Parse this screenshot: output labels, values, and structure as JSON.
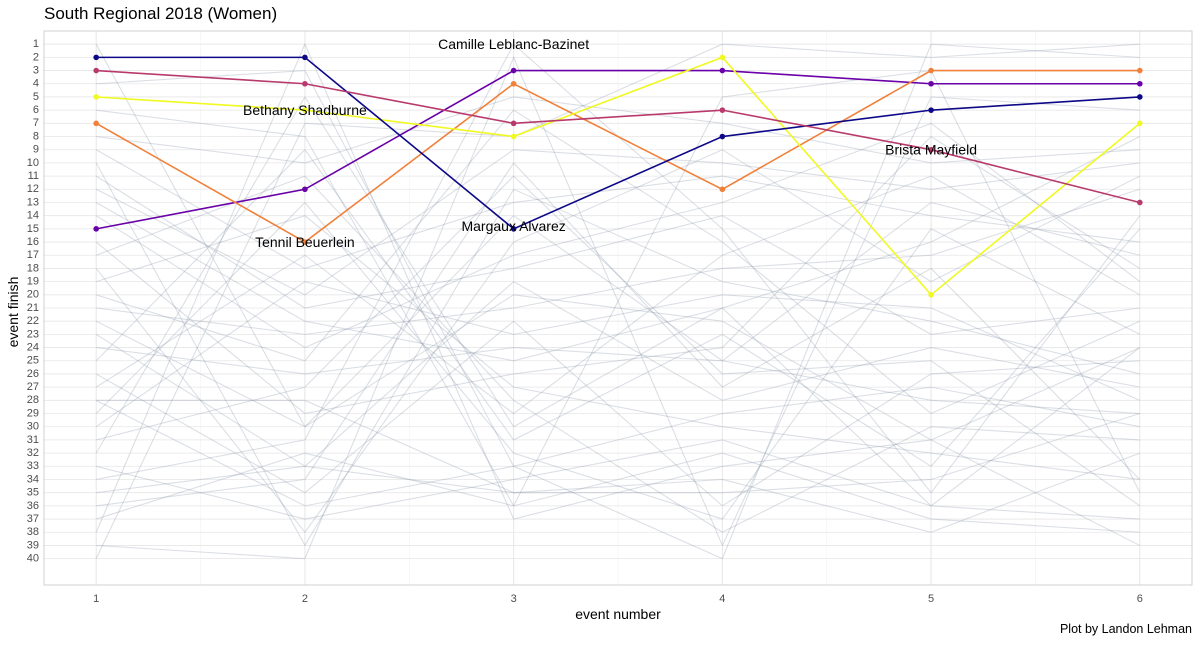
{
  "chart_data": {
    "type": "line",
    "title": "South Regional 2018 (Women)",
    "xlabel": "event number",
    "ylabel": "event finish",
    "caption": "Plot by Landon Lehman",
    "x": [
      1,
      2,
      3,
      4,
      5,
      6
    ],
    "xlim": [
      0.75,
      6.25
    ],
    "ylim": [
      42,
      0
    ],
    "y_ticks": [
      1,
      2,
      3,
      4,
      5,
      6,
      7,
      8,
      9,
      10,
      11,
      12,
      13,
      14,
      15,
      16,
      17,
      18,
      19,
      20,
      21,
      22,
      23,
      24,
      25,
      26,
      27,
      28,
      29,
      30,
      31,
      32,
      33,
      34,
      35,
      36,
      37,
      38,
      39,
      40
    ],
    "y_reversed": true,
    "grid": true,
    "highlighted": [
      {
        "name": "Camille Leblanc-Bazinet",
        "color": "#6A00A8",
        "values": [
          15,
          12,
          3,
          3,
          4,
          4
        ]
      },
      {
        "name": "Tennil Beuerlein",
        "color": "#F0803A",
        "values": [
          7,
          16,
          4,
          12,
          3,
          3
        ]
      },
      {
        "name": "Bethany Shadburne",
        "color": "#F0F921",
        "values": [
          5,
          6,
          8,
          2,
          20,
          7
        ]
      },
      {
        "name": "Margaux Alvarez",
        "color": "#0D0887",
        "values": [
          2,
          2,
          15,
          8,
          6,
          5
        ]
      },
      {
        "name": "Brista Mayfield",
        "color": "#B83A6C",
        "values": [
          3,
          4,
          7,
          6,
          9,
          13
        ]
      }
    ],
    "labels": [
      {
        "text": "Camille Leblanc-Bazinet",
        "x": 3.0,
        "y": 1.1
      },
      {
        "text": "Bethany Shadburne",
        "x": 2.0,
        "y": 6.1
      },
      {
        "text": "Tennil Beuerlein",
        "x": 2.0,
        "y": 16.1
      },
      {
        "text": "Margaux Alvarez",
        "x": 3.0,
        "y": 14.9
      },
      {
        "text": "Brista Mayfield",
        "x": 5.0,
        "y": 9.1
      }
    ],
    "background_series_color": "#8895AA",
    "background_series": [
      [
        1,
        30,
        20,
        22,
        31,
        24
      ],
      [
        8,
        10,
        5,
        7,
        10,
        9
      ],
      [
        9,
        18,
        13,
        11,
        14,
        16
      ],
      [
        10,
        39,
        12,
        19,
        22,
        26
      ],
      [
        11,
        21,
        18,
        14,
        23,
        21
      ],
      [
        12,
        20,
        9,
        10,
        12,
        10
      ],
      [
        13,
        22,
        25,
        21,
        36,
        24
      ],
      [
        14,
        24,
        17,
        13,
        7,
        19
      ],
      [
        16,
        29,
        26,
        24,
        8,
        18
      ],
      [
        17,
        11,
        28,
        38,
        30,
        31
      ],
      [
        18,
        38,
        16,
        9,
        19,
        11
      ],
      [
        19,
        14,
        27,
        30,
        32,
        34
      ],
      [
        20,
        25,
        6,
        16,
        29,
        22
      ],
      [
        21,
        23,
        21,
        18,
        17,
        12
      ],
      [
        22,
        30,
        14,
        25,
        28,
        29
      ],
      [
        23,
        33,
        19,
        28,
        24,
        27
      ],
      [
        24,
        26,
        24,
        25,
        13,
        17
      ],
      [
        25,
        9,
        31,
        23,
        33,
        15
      ],
      [
        26,
        35,
        22,
        36,
        26,
        25
      ],
      [
        27,
        17,
        29,
        17,
        11,
        20
      ],
      [
        28,
        28,
        35,
        34,
        38,
        32
      ],
      [
        28,
        36,
        33,
        29,
        27,
        30
      ],
      [
        29,
        13,
        32,
        37,
        15,
        23
      ],
      [
        30,
        19,
        23,
        20,
        21,
        28
      ],
      [
        31,
        27,
        11,
        26,
        25,
        36
      ],
      [
        32,
        5,
        30,
        21,
        16,
        8
      ],
      [
        33,
        37,
        34,
        31,
        36,
        37
      ],
      [
        34,
        31,
        1,
        15,
        35,
        14
      ],
      [
        35,
        33,
        35,
        35,
        34,
        29
      ],
      [
        36,
        34,
        10,
        27,
        18,
        34
      ],
      [
        37,
        32,
        36,
        32,
        37,
        38
      ],
      [
        39,
        40,
        2,
        39,
        5,
        6
      ],
      [
        40,
        7,
        8,
        1,
        2,
        1
      ],
      [
        38,
        1,
        37,
        33,
        31,
        39
      ],
      [
        6,
        8,
        36,
        5,
        3,
        35
      ],
      [
        4,
        3,
        33,
        40,
        1,
        2
      ]
    ]
  }
}
